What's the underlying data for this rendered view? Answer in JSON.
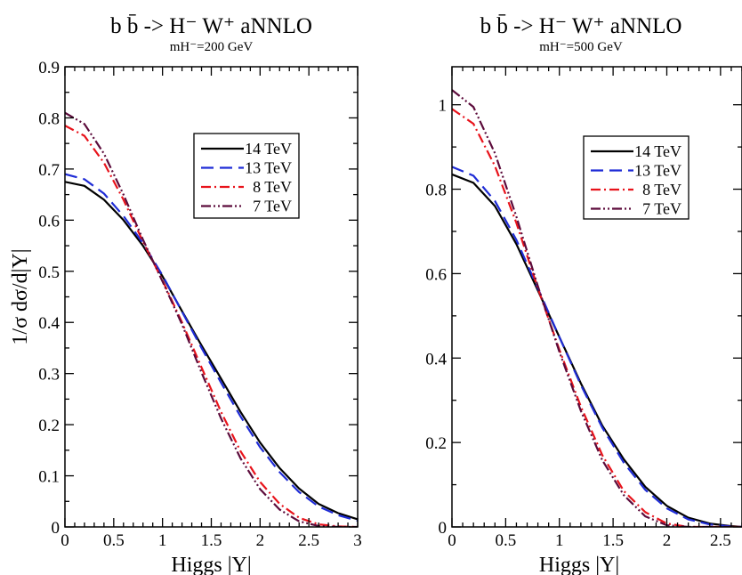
{
  "chart_data": [
    {
      "type": "line",
      "title": "b b̄ -> H⁻ W⁺  aNNLO",
      "subtitle": "mH⁻=200 GeV",
      "xlabel": "Higgs  |Y|",
      "ylabel": "1/σ  dσ/d|Y|",
      "xlim": [
        0,
        3
      ],
      "ylim": [
        0,
        0.9
      ],
      "xticks": [
        0,
        0.5,
        1,
        1.5,
        2,
        2.5,
        3
      ],
      "xtick_labels": [
        "0",
        "0.5",
        "1",
        "1.5",
        "2",
        "2.5",
        "3"
      ],
      "yticks": [
        0,
        0.1,
        0.2,
        0.3,
        0.4,
        0.5,
        0.6,
        0.7,
        0.8,
        0.9
      ],
      "ytick_labels": [
        "0",
        "0.1",
        "0.2",
        "0.3",
        "0.4",
        "0.5",
        "0.6",
        "0.7",
        "0.8",
        "0.9"
      ],
      "grid": false,
      "legend": "top-right",
      "series": [
        {
          "name": "14 TeV",
          "color": "#000000",
          "dash": "solid",
          "x": [
            0,
            0.2,
            0.4,
            0.6,
            0.8,
            1.0,
            1.2,
            1.4,
            1.6,
            1.8,
            2.0,
            2.2,
            2.4,
            2.6,
            2.8,
            3.0
          ],
          "y": [
            0.675,
            0.667,
            0.64,
            0.6,
            0.55,
            0.49,
            0.422,
            0.355,
            0.29,
            0.225,
            0.165,
            0.115,
            0.075,
            0.045,
            0.027,
            0.015
          ]
        },
        {
          "name": "13 TeV",
          "color": "#1f2cd6",
          "dash": "long-dash",
          "x": [
            0,
            0.2,
            0.4,
            0.6,
            0.8,
            1.0,
            1.2,
            1.4,
            1.6,
            1.8,
            2.0,
            2.2,
            2.4,
            2.6,
            2.8,
            3.0
          ],
          "y": [
            0.69,
            0.68,
            0.652,
            0.608,
            0.555,
            0.492,
            0.421,
            0.35,
            0.282,
            0.216,
            0.156,
            0.107,
            0.068,
            0.04,
            0.023,
            0.012
          ]
        },
        {
          "name": "8 TeV",
          "color": "#e8131b",
          "dash": "dash-dot",
          "x": [
            0,
            0.2,
            0.4,
            0.6,
            0.8,
            1.0,
            1.2,
            1.4,
            1.6,
            1.8,
            2.0,
            2.2,
            2.4,
            2.6,
            2.8,
            3.0
          ],
          "y": [
            0.785,
            0.765,
            0.712,
            0.64,
            0.558,
            0.482,
            0.4,
            0.312,
            0.225,
            0.148,
            0.088,
            0.045,
            0.018,
            0.005,
            0.001,
            0.0
          ]
        },
        {
          "name": "7 TeV",
          "color": "#5c0b3b",
          "dash": "dash-dot-dot",
          "x": [
            0,
            0.2,
            0.4,
            0.6,
            0.8,
            1.0,
            1.2,
            1.4,
            1.6,
            1.8,
            2.0,
            2.2,
            2.4,
            2.6,
            2.8,
            3.0
          ],
          "y": [
            0.81,
            0.788,
            0.73,
            0.65,
            0.562,
            0.48,
            0.396,
            0.302,
            0.212,
            0.134,
            0.074,
            0.034,
            0.011,
            0.002,
            0.0,
            0.0
          ]
        }
      ]
    },
    {
      "type": "line",
      "title": "b b̄ -> H⁻ W⁺  aNNLO",
      "subtitle": "mH⁻=500 GeV",
      "xlabel": "Higgs  |Y|",
      "ylabel": "",
      "xlim": [
        0,
        2.7
      ],
      "ylim": [
        0,
        1.09
      ],
      "xticks": [
        0,
        0.5,
        1,
        1.5,
        2,
        2.5
      ],
      "xtick_labels": [
        "0",
        "0.5",
        "1",
        "1.5",
        "2",
        "2.5"
      ],
      "yticks": [
        0,
        0.2,
        0.4,
        0.6,
        0.8,
        1.0
      ],
      "ytick_labels": [
        "0",
        "0.2",
        "0.4",
        "0.6",
        "0.8",
        "1"
      ],
      "grid": false,
      "legend": "top-right",
      "series": [
        {
          "name": "14 TeV",
          "color": "#000000",
          "dash": "solid",
          "x": [
            0,
            0.2,
            0.4,
            0.6,
            0.8,
            1.0,
            1.2,
            1.4,
            1.6,
            1.8,
            2.0,
            2.2,
            2.4,
            2.6,
            2.7
          ],
          "y": [
            0.835,
            0.815,
            0.76,
            0.67,
            0.56,
            0.45,
            0.34,
            0.24,
            0.16,
            0.095,
            0.05,
            0.022,
            0.008,
            0.002,
            0.0
          ]
        },
        {
          "name": "13 TeV",
          "color": "#1f2cd6",
          "dash": "long-dash",
          "x": [
            0,
            0.2,
            0.4,
            0.6,
            0.8,
            1.0,
            1.2,
            1.4,
            1.6,
            1.8,
            2.0,
            2.2,
            2.4,
            2.6,
            2.7
          ],
          "y": [
            0.853,
            0.832,
            0.772,
            0.68,
            0.565,
            0.45,
            0.336,
            0.235,
            0.152,
            0.088,
            0.044,
            0.018,
            0.006,
            0.001,
            0.0
          ]
        },
        {
          "name": "8 TeV",
          "color": "#e8131b",
          "dash": "dash-dot",
          "x": [
            0,
            0.2,
            0.4,
            0.6,
            0.8,
            1.0,
            1.2,
            1.4,
            1.6,
            1.8,
            2.0,
            2.2,
            2.4,
            2.6,
            2.7
          ],
          "y": [
            0.99,
            0.955,
            0.855,
            0.72,
            0.565,
            0.42,
            0.285,
            0.17,
            0.085,
            0.035,
            0.008,
            0.0,
            0.0,
            0.0,
            0.0
          ]
        },
        {
          "name": "7 TeV",
          "color": "#5c0b3b",
          "dash": "dash-dot-dot",
          "x": [
            0,
            0.2,
            0.4,
            0.6,
            0.8,
            1.0,
            1.2,
            1.4,
            1.6,
            1.8,
            2.0,
            2.2,
            2.4,
            2.6,
            2.7
          ],
          "y": [
            1.035,
            0.995,
            0.885,
            0.735,
            0.57,
            0.415,
            0.275,
            0.158,
            0.075,
            0.025,
            0.004,
            0.0,
            0.0,
            0.0,
            0.0
          ]
        }
      ]
    }
  ]
}
